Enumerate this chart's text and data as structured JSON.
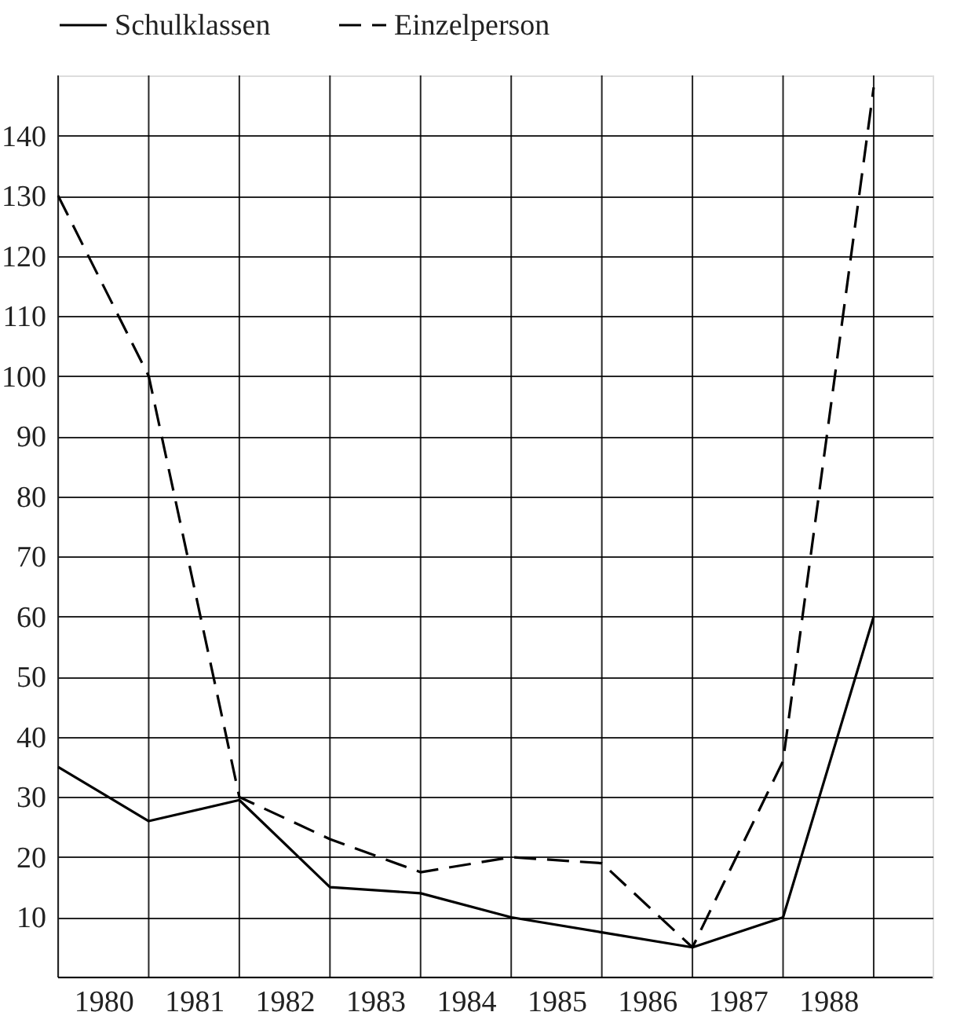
{
  "chart_data": {
    "type": "line",
    "x": [
      1980,
      1981,
      1982,
      1983,
      1984,
      1985,
      1986,
      1987,
      1988,
      1989
    ],
    "series": [
      {
        "name": "Schulklassen",
        "color": "#000000",
        "line_style": "solid",
        "values": [
          35,
          26,
          29.5,
          15,
          14,
          10,
          7.5,
          5,
          10,
          60
        ]
      },
      {
        "name": "Einzelperson",
        "color": "#000000",
        "line_style": "dashed",
        "values": [
          130,
          100,
          30,
          23,
          17.5,
          20,
          19,
          5,
          36,
          148
        ]
      }
    ],
    "xlim": [
      1980,
      1989.65
    ],
    "ylim": [
      0,
      150
    ],
    "xticks": [
      {
        "value": 1980,
        "label": null
      },
      {
        "value": 1980.5,
        "label": "1980"
      },
      {
        "value": 1981,
        "label": null
      },
      {
        "value": 1981.5,
        "label": "1981"
      },
      {
        "value": 1982,
        "label": null
      },
      {
        "value": 1982.5,
        "label": "1982"
      },
      {
        "value": 1983,
        "label": null
      },
      {
        "value": 1983.5,
        "label": "1983"
      },
      {
        "value": 1984,
        "label": null
      },
      {
        "value": 1984.5,
        "label": "1984"
      },
      {
        "value": 1985,
        "label": null
      },
      {
        "value": 1985.5,
        "label": "1985"
      },
      {
        "value": 1986,
        "label": null
      },
      {
        "value": 1986.5,
        "label": "1986"
      },
      {
        "value": 1987,
        "label": null
      },
      {
        "value": 1987.5,
        "label": "1987"
      },
      {
        "value": 1988,
        "label": null
      },
      {
        "value": 1988.5,
        "label": "1988"
      },
      {
        "value": 1989,
        "label": null
      }
    ],
    "yticks": [
      10,
      20,
      30,
      40,
      50,
      60,
      70,
      80,
      90,
      100,
      110,
      120,
      130,
      140
    ],
    "grid": true,
    "legend": "top",
    "marker": "none"
  }
}
